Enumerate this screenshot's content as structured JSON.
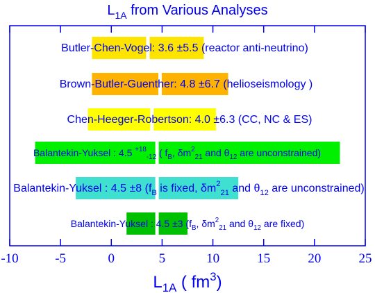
{
  "chart_data": {
    "type": "bar",
    "orientation": "horizontal",
    "title": "L1A from Various Analyses",
    "title_parts": {
      "main": "L",
      "sub": "1A",
      "rest": " from Various Analyses"
    },
    "xlabel": "L1A ( fm3)",
    "xlabel_parts": {
      "main": "L",
      "sub": "1A",
      "open": " ( fm",
      "sup": "3",
      "close": ")"
    },
    "xlim": [
      -10,
      25
    ],
    "xticks": [
      -10,
      -5,
      0,
      5,
      10,
      15,
      20,
      25
    ],
    "xtick_labels": [
      "-10",
      "-5",
      "0",
      "5",
      "10",
      "15",
      "20",
      "25"
    ],
    "grid": false,
    "legend": "none",
    "rows": [
      {
        "name": "Butler-Chen-Vogel",
        "label": "Butler-Chen-Vogel: 3.6 ±5.5 (reactor anti-neutrino)",
        "center": 3.6,
        "minus": 5.5,
        "plus": 5.5,
        "color": "#ffe400"
      },
      {
        "name": "Brown-Butler-Guenther",
        "label": "Brown-Butler-Guenther: 4.8 ±6.7  (helioseismology )",
        "center": 4.8,
        "minus": 6.7,
        "plus": 6.7,
        "color": "#ffb300"
      },
      {
        "name": "Chen-Heeger-Robertson",
        "label": "Chen-Heeger-Robertson: 4.0 ±6.3 (CC, NC & ES)",
        "center": 4.0,
        "minus": 6.3,
        "plus": 6.3,
        "color": "#ffff00"
      },
      {
        "name": "Balantekin-Yuksel",
        "label": "Balantekin-Yuksel :  4.5  +18 -12  ( fB, δm221 and θ12 are unconstrained)",
        "center": 4.5,
        "minus": 12,
        "plus": 18,
        "color": "#00f000"
      },
      {
        "name": "Balantekin-Yuksel",
        "label": "Balantekin-Yuksel :  4.5 ±8  (fB is fixed, δm221 and θ12 are unconstrained)",
        "center": 4.5,
        "minus": 8,
        "plus": 8,
        "color": "#40e0d0"
      },
      {
        "name": "Balantekin-Yuksel",
        "label": "Balantekin-Yuksel :  4.5 ±3  (fB, δm221 and θ12 are fixed)",
        "center": 4.5,
        "minus": 3,
        "plus": 3,
        "color": "#00c000"
      }
    ]
  },
  "colors": {
    "frame": "#0000ee",
    "text": "#0000ee",
    "center_line": "#ffffff",
    "background": "#ffffff"
  }
}
